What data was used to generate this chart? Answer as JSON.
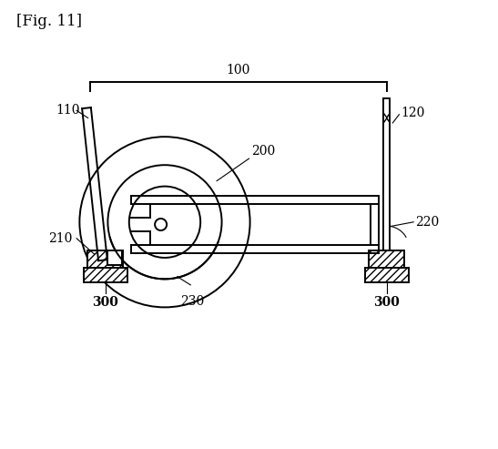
{
  "title": "[Fig. 11]",
  "background": "#ffffff",
  "label_100": "100",
  "label_110": "110",
  "label_120": "120",
  "label_200": "200",
  "label_210": "210",
  "label_220": "220",
  "label_230": "230",
  "label_300a": "300",
  "label_300b": "300",
  "figsize": [
    5.47,
    4.93
  ],
  "dpi": 100
}
